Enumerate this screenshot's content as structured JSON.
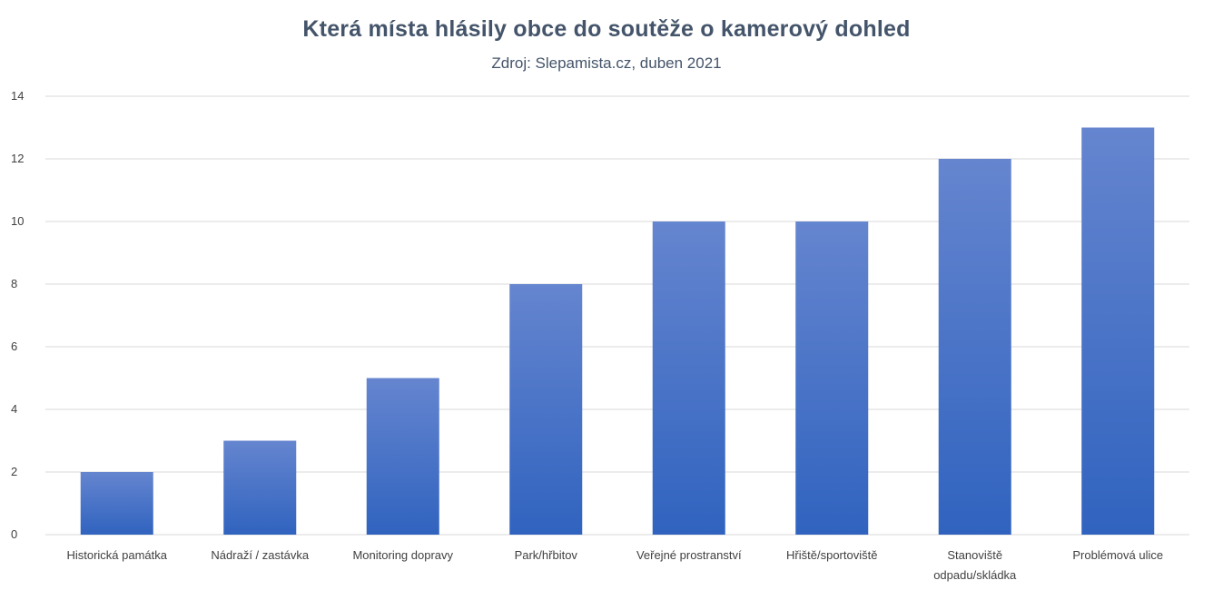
{
  "chart_data": {
    "type": "bar",
    "title": "Která místa hlásily obce do soutěže o kamerový dohled",
    "subtitle": "Zdroj:  Slepamista.cz, duben 2021",
    "xlabel": "",
    "ylabel": "",
    "categories": [
      [
        "Historická památka"
      ],
      [
        "Nádraží / zastávka"
      ],
      [
        "Monitoring dopravy"
      ],
      [
        "Park/hřbitov"
      ],
      [
        "Veřejné prostranství"
      ],
      [
        "Hřiště/sportoviště"
      ],
      [
        "Stanoviště",
        "odpadu/skládka"
      ],
      [
        "Problémová ulice"
      ]
    ],
    "values": [
      2,
      3,
      5,
      8,
      10,
      10,
      12,
      13
    ],
    "ylim": [
      0,
      14
    ],
    "yticks": [
      0,
      2,
      4,
      6,
      8,
      10,
      12,
      14
    ],
    "grid": true,
    "legend": "none",
    "colors": {
      "bar_top": "#6585cf",
      "bar_bottom": "#3063bf",
      "gridline": "#d9d9d9",
      "axis": "#d9d9d9",
      "title": "#44546a"
    }
  }
}
